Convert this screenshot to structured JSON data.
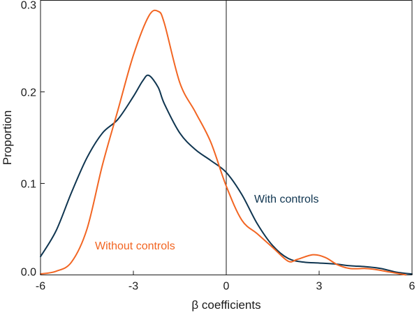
{
  "chart_data": {
    "type": "line",
    "title": "",
    "xlabel": "β coefficients",
    "ylabel": "Proportion",
    "xlim": [
      -6,
      6
    ],
    "ylim": [
      0,
      0.3
    ],
    "x_ticks": [
      -6,
      -3,
      0,
      3,
      6
    ],
    "y_ticks": [
      0.0,
      0.1,
      0.2,
      0.3
    ],
    "x_tick_labels": [
      "-6",
      "-3",
      "0",
      "3",
      "6"
    ],
    "y_tick_labels": [
      "0.0",
      "0.1",
      "0.2",
      "0.3"
    ],
    "grid": false,
    "legend": "none (series labelled directly on the plot)",
    "vertical_reference_line_x": 0,
    "series": [
      {
        "name": "With controls",
        "color": "#0f3550",
        "x": [
          -6.0,
          -5.5,
          -5.0,
          -4.5,
          -4.0,
          -3.5,
          -3.0,
          -2.7,
          -2.5,
          -2.2,
          -2.0,
          -1.5,
          -1.0,
          -0.5,
          0.0,
          0.5,
          1.0,
          1.5,
          2.0,
          2.5,
          3.0,
          3.5,
          4.0,
          4.5,
          5.0,
          5.5,
          6.0
        ],
        "y": [
          0.02,
          0.048,
          0.09,
          0.128,
          0.155,
          0.17,
          0.195,
          0.212,
          0.218,
          0.205,
          0.187,
          0.155,
          0.137,
          0.125,
          0.112,
          0.088,
          0.056,
          0.032,
          0.018,
          0.014,
          0.013,
          0.012,
          0.01,
          0.009,
          0.007,
          0.003,
          0.001
        ]
      },
      {
        "name": "Without controls",
        "color": "#f26522",
        "x": [
          -6.0,
          -5.5,
          -5.0,
          -4.5,
          -4.0,
          -3.5,
          -3.0,
          -2.5,
          -2.2,
          -2.0,
          -1.5,
          -1.0,
          -0.5,
          0.0,
          0.5,
          1.0,
          1.5,
          2.0,
          2.3,
          2.8,
          3.2,
          3.6,
          4.0,
          4.5,
          4.8,
          5.3,
          5.8
        ],
        "y": [
          0.001,
          0.004,
          0.014,
          0.05,
          0.12,
          0.18,
          0.24,
          0.283,
          0.288,
          0.275,
          0.21,
          0.178,
          0.145,
          0.097,
          0.06,
          0.045,
          0.03,
          0.015,
          0.017,
          0.022,
          0.019,
          0.011,
          0.007,
          0.007,
          0.006,
          0.003,
          0.0
        ]
      }
    ]
  }
}
